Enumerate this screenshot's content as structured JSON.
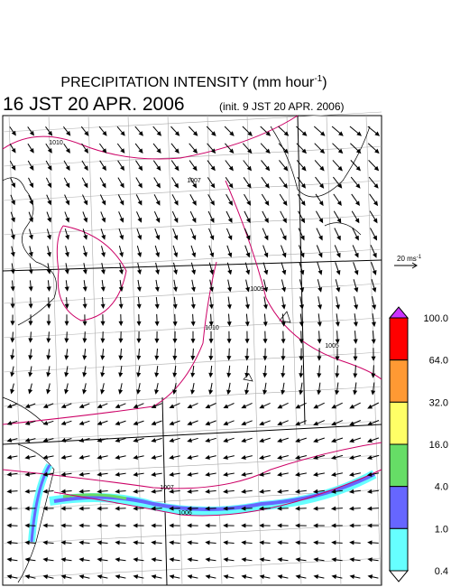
{
  "title": {
    "text": "PRECIPITATION INTENSITY (mm hour",
    "superscript": "-1",
    "close": ")"
  },
  "valid_time": "16 JST 20 APR. 2006",
  "init_time": "(init. 9 JST 20 APR. 2006)",
  "scale_arrow": {
    "label": "20 ms",
    "superscript": "-1"
  },
  "contour_labels": [
    "1010",
    "1007",
    "1009",
    "1010",
    "1005",
    "1007",
    "1006"
  ],
  "colorbar": {
    "labels": [
      "100.0",
      "64.0",
      "32.0",
      "16.0",
      "4.0",
      "1.0",
      "0.4"
    ],
    "colors": [
      "#ff0000",
      "#ff9933",
      "#ffff66",
      "#66dd66",
      "#6666ff",
      "#66ffff"
    ],
    "over_color": "#cc33ff",
    "under_color": "#ffffff"
  }
}
